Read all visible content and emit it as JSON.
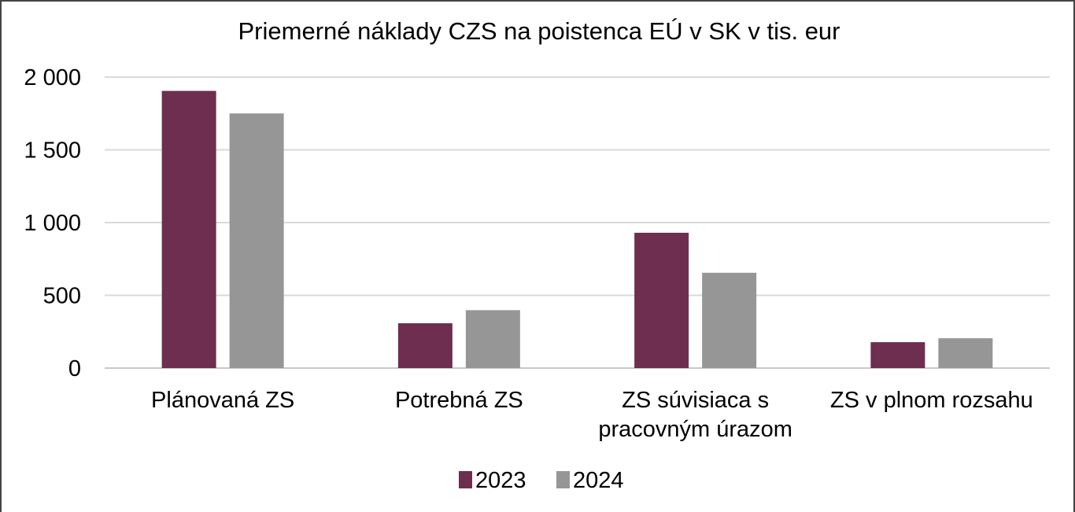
{
  "chart_data": {
    "type": "bar",
    "title": "Priemerné náklady CZS na poistenca EÚ v SK v tis. eur",
    "xlabel": "",
    "ylabel": "",
    "categories": [
      [
        "Plánovaná ZS"
      ],
      [
        "Potrebná ZS"
      ],
      [
        "ZS súvisiaca s",
        "pracovným úrazom"
      ],
      [
        "ZS v plnom rozsahu"
      ]
    ],
    "series": [
      {
        "name": "2023",
        "color": "#6d2e4f",
        "values": [
          1905,
          308,
          930,
          178
        ]
      },
      {
        "name": "2024",
        "color": "#969696",
        "values": [
          1750,
          398,
          655,
          205
        ]
      }
    ],
    "ylim": [
      0,
      2000
    ],
    "yticks": [
      0,
      500,
      1000,
      1500,
      2000
    ],
    "ytick_labels": [
      "0",
      "500",
      "1 000",
      "1 500",
      "2 000"
    ],
    "grid": true,
    "legend_position": "bottom"
  }
}
